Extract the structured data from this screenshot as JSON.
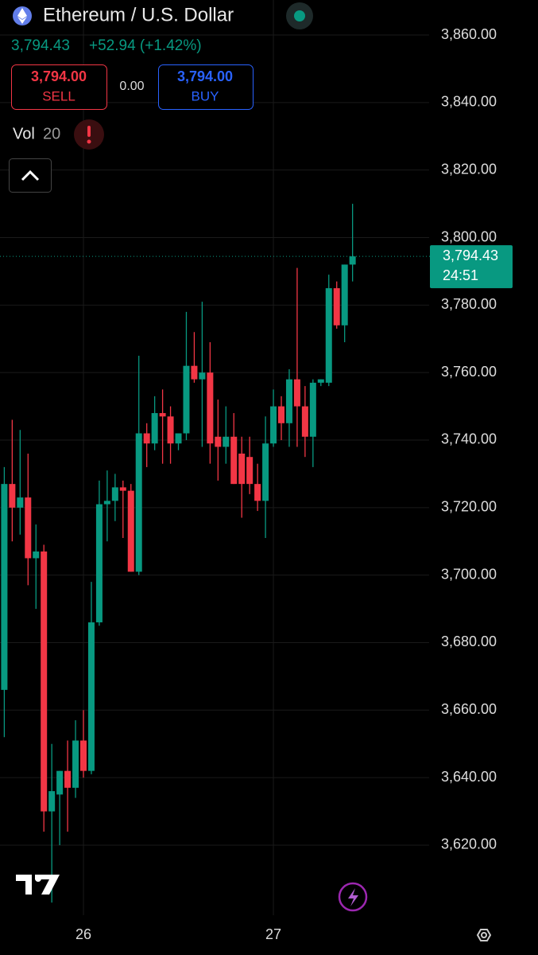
{
  "header": {
    "title": "Ethereum / U.S. Dollar",
    "price": "3,794.43",
    "change": "+52.94 (+1.42%)",
    "sell": {
      "price": "3,794.00",
      "label": "SELL"
    },
    "spread": "0.00",
    "buy": {
      "price": "3,794.00",
      "label": "BUY"
    },
    "indicator": {
      "name": "Vol",
      "length": "20"
    }
  },
  "chart_data": {
    "type": "candlestick",
    "categories": [
      null,
      null,
      null,
      null,
      null,
      null,
      null,
      null,
      null,
      null,
      "26",
      null,
      null,
      null,
      null,
      null,
      null,
      null,
      null,
      null,
      null,
      null,
      null,
      null,
      null,
      null,
      null,
      null,
      null,
      null,
      null,
      null,
      null,
      null,
      "27",
      null,
      null,
      null,
      null,
      null,
      null,
      null,
      null,
      null,
      null
    ],
    "series": {
      "open": [
        3666,
        3727,
        3720,
        3723,
        3705,
        3707,
        3630,
        3635,
        3642,
        3637,
        3651,
        3642,
        3686,
        3721,
        3722,
        3726,
        3725,
        3701,
        3742,
        3739,
        3748,
        3747,
        3739,
        3742,
        3762,
        3758,
        3760,
        3741,
        3738,
        3741,
        3736,
        3735,
        3727,
        3722,
        3739,
        3750,
        3745,
        3758,
        3750,
        3741,
        3757,
        3757,
        3785,
        3774,
        3792
      ],
      "high": [
        3732,
        3746,
        3743,
        3736,
        3715,
        3709,
        3650,
        3642,
        3651,
        3657,
        3660,
        3698,
        3728,
        3731,
        3730,
        3728,
        3727,
        3765,
        3745,
        3753,
        3755,
        3750,
        3742,
        3778,
        3772,
        3781,
        3769,
        3752,
        3750,
        3748,
        3741,
        3741,
        3733,
        3747,
        3755,
        3753,
        3761,
        3791,
        3756,
        3758,
        3758,
        3789,
        3787,
        3792,
        3810
      ],
      "low": [
        3652,
        3710,
        3712,
        3697,
        3690,
        3624,
        3603,
        3620,
        3624,
        3634,
        3640,
        3641,
        3685,
        3710,
        3716,
        3711,
        3701,
        3700,
        3732,
        3737,
        3733,
        3733,
        3737,
        3740,
        3757,
        3738,
        3733,
        3728,
        3733,
        3727,
        3717,
        3724,
        3719,
        3711,
        3738,
        3740,
        3738,
        3738,
        3735,
        3732,
        3756,
        3756,
        3773,
        3769,
        3787
      ],
      "close": [
        3727,
        3720,
        3723,
        3705,
        3707,
        3630,
        3636,
        3642,
        3637,
        3651,
        3642,
        3686,
        3721,
        3722,
        3726,
        3725,
        3701,
        3742,
        3739,
        3748,
        3747,
        3739,
        3742,
        3762,
        3758,
        3760,
        3739,
        3738,
        3741,
        3727,
        3727,
        3727,
        3722,
        3739,
        3750,
        3745,
        3758,
        3750,
        3741,
        3757,
        3758,
        3785,
        3774,
        3792,
        3794.43
      ]
    },
    "up_color": "#089981",
    "down_color": "#f23645",
    "ylim": [
      3600,
      3870
    ],
    "yticks": [
      {
        "value": 3620,
        "label": "3,620.00"
      },
      {
        "value": 3640,
        "label": "3,640.00"
      },
      {
        "value": 3660,
        "label": "3,660.00"
      },
      {
        "value": 3680,
        "label": "3,680.00"
      },
      {
        "value": 3700,
        "label": "3,700.00"
      },
      {
        "value": 3720,
        "label": "3,720.00"
      },
      {
        "value": 3740,
        "label": "3,740.00"
      },
      {
        "value": 3760,
        "label": "3,760.00"
      },
      {
        "value": 3780,
        "label": "3,780.00"
      },
      {
        "value": 3800,
        "label": "3,800.00"
      },
      {
        "value": 3820,
        "label": "3,820.00"
      },
      {
        "value": 3840,
        "label": "3,840.00"
      },
      {
        "value": 3860,
        "label": "3,860.00"
      }
    ],
    "grid": true,
    "last": {
      "value": 3794.43,
      "label": "3,794.43"
    },
    "countdown": "24:51"
  }
}
